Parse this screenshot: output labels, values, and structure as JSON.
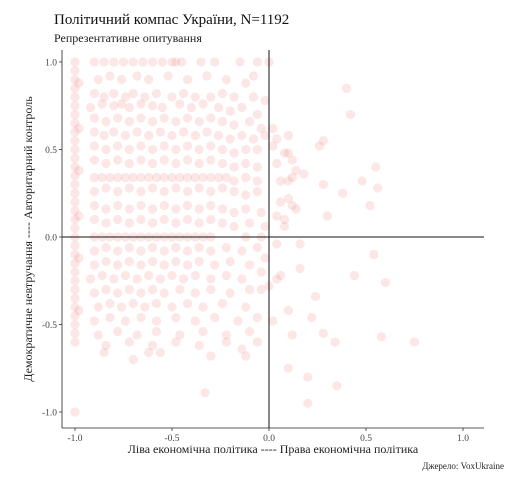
{
  "chart_data": {
    "type": "scatter",
    "title": "Політичний компас України, N=1192",
    "subtitle": "Репрезентативне опитування",
    "xlabel": "Ліва економічна політика ---- Права економічна політика",
    "ylabel": "Демократичне невтручання ---- Авторитарний контроль",
    "caption": "Джерело: VoxUkraine",
    "xlim": [
      -1.0,
      1.1
    ],
    "ylim": [
      -1.08,
      1.05
    ],
    "x_ticks": [
      -1.0,
      -0.5,
      0.0,
      0.5,
      1.0
    ],
    "x_tick_labels": [
      "-1.0",
      "-0.5",
      "0.0",
      "0.5",
      "1.0"
    ],
    "y_ticks": [
      -1.0,
      -0.5,
      0.0,
      0.5,
      1.0
    ],
    "y_tick_labels": [
      "-1.0",
      "-0.5",
      "0.0",
      "0.5",
      "1.0"
    ],
    "reference_lines": {
      "x": 0.0,
      "y": 0.0
    },
    "grid": false,
    "point_color": "#f08080",
    "point_opacity": 0.2,
    "points": [
      [
        -1.0,
        1.0
      ],
      [
        -1.0,
        0.95
      ],
      [
        -1.0,
        0.9
      ],
      [
        -1.0,
        0.85
      ],
      [
        -1.0,
        0.8
      ],
      [
        -1.0,
        0.75
      ],
      [
        -1.0,
        0.7
      ],
      [
        -1.0,
        0.65
      ],
      [
        -1.0,
        0.6
      ],
      [
        -1.0,
        0.55
      ],
      [
        -1.0,
        0.5
      ],
      [
        -1.0,
        0.45
      ],
      [
        -1.0,
        0.4
      ],
      [
        -1.0,
        0.35
      ],
      [
        -1.0,
        0.3
      ],
      [
        -1.0,
        0.25
      ],
      [
        -1.0,
        0.2
      ],
      [
        -1.0,
        0.15
      ],
      [
        -1.0,
        0.1
      ],
      [
        -1.0,
        0.05
      ],
      [
        -1.0,
        0.0
      ],
      [
        -1.0,
        -0.05
      ],
      [
        -1.0,
        -0.1
      ],
      [
        -1.0,
        -0.15
      ],
      [
        -1.0,
        -0.2
      ],
      [
        -1.0,
        -0.25
      ],
      [
        -1.0,
        -0.3
      ],
      [
        -1.0,
        -0.35
      ],
      [
        -1.0,
        -0.4
      ],
      [
        -1.0,
        -0.45
      ],
      [
        -1.0,
        -0.5
      ],
      [
        -1.0,
        -0.55
      ],
      [
        -1.0,
        -0.6
      ],
      [
        -1.0,
        -1.0
      ],
      [
        -0.98,
        0.88
      ],
      [
        -0.98,
        0.62
      ],
      [
        -0.98,
        0.38
      ],
      [
        -0.98,
        0.12
      ],
      [
        -0.98,
        -0.12
      ],
      [
        -0.98,
        -0.42
      ],
      [
        -0.9,
        1.0
      ],
      [
        -0.85,
        1.0
      ],
      [
        -0.8,
        1.0
      ],
      [
        -0.75,
        1.0
      ],
      [
        -0.7,
        1.0
      ],
      [
        -0.65,
        1.0
      ],
      [
        -0.6,
        1.0
      ],
      [
        -0.55,
        1.0
      ],
      [
        -0.5,
        1.0
      ],
      [
        -0.45,
        1.0
      ],
      [
        -0.48,
        1.0
      ],
      [
        -0.35,
        1.0
      ],
      [
        -0.28,
        1.0
      ],
      [
        -0.15,
        1.0
      ],
      [
        -0.88,
        0.9
      ],
      [
        -0.82,
        0.92
      ],
      [
        -0.76,
        0.9
      ],
      [
        -0.68,
        0.92
      ],
      [
        -0.62,
        0.9
      ],
      [
        -0.52,
        0.92
      ],
      [
        -0.42,
        0.9
      ],
      [
        -0.32,
        0.92
      ],
      [
        -0.22,
        0.9
      ],
      [
        -0.12,
        0.88
      ],
      [
        -0.9,
        0.82
      ],
      [
        -0.85,
        0.8
      ],
      [
        -0.8,
        0.82
      ],
      [
        -0.74,
        0.8
      ],
      [
        -0.7,
        0.82
      ],
      [
        -0.64,
        0.8
      ],
      [
        -0.58,
        0.82
      ],
      [
        -0.5,
        0.8
      ],
      [
        -0.44,
        0.82
      ],
      [
        -0.38,
        0.8
      ],
      [
        -0.3,
        0.8
      ],
      [
        -0.24,
        0.82
      ],
      [
        -0.18,
        0.8
      ],
      [
        -0.08,
        0.8
      ],
      [
        -0.92,
        0.74
      ],
      [
        -0.86,
        0.76
      ],
      [
        -0.8,
        0.75
      ],
      [
        -0.76,
        0.76
      ],
      [
        -0.72,
        0.74
      ],
      [
        -0.66,
        0.76
      ],
      [
        -0.6,
        0.75
      ],
      [
        -0.55,
        0.74
      ],
      [
        -0.46,
        0.76
      ],
      [
        -0.4,
        0.74
      ],
      [
        -0.34,
        0.76
      ],
      [
        -0.26,
        0.74
      ],
      [
        -0.2,
        0.72
      ],
      [
        -0.14,
        0.74
      ],
      [
        -0.06,
        0.7
      ],
      [
        -0.9,
        0.68
      ],
      [
        -0.84,
        0.66
      ],
      [
        -0.78,
        0.68
      ],
      [
        -0.72,
        0.66
      ],
      [
        -0.66,
        0.68
      ],
      [
        -0.6,
        0.66
      ],
      [
        -0.54,
        0.68
      ],
      [
        -0.48,
        0.66
      ],
      [
        -0.42,
        0.68
      ],
      [
        -0.36,
        0.66
      ],
      [
        -0.3,
        0.68
      ],
      [
        -0.24,
        0.66
      ],
      [
        -0.18,
        0.64
      ],
      [
        -0.1,
        0.66
      ],
      [
        -0.04,
        0.62
      ],
      [
        -0.9,
        0.6
      ],
      [
        -0.85,
        0.58
      ],
      [
        -0.8,
        0.6
      ],
      [
        -0.74,
        0.58
      ],
      [
        -0.68,
        0.6
      ],
      [
        -0.62,
        0.58
      ],
      [
        -0.56,
        0.6
      ],
      [
        -0.5,
        0.58
      ],
      [
        -0.44,
        0.6
      ],
      [
        -0.38,
        0.58
      ],
      [
        -0.32,
        0.6
      ],
      [
        -0.26,
        0.58
      ],
      [
        -0.2,
        0.56
      ],
      [
        -0.14,
        0.58
      ],
      [
        -0.08,
        0.56
      ],
      [
        -0.02,
        0.58
      ],
      [
        0.04,
        0.56
      ],
      [
        0.1,
        0.58
      ],
      [
        -0.9,
        0.52
      ],
      [
        -0.84,
        0.5
      ],
      [
        -0.78,
        0.52
      ],
      [
        -0.72,
        0.5
      ],
      [
        -0.66,
        0.52
      ],
      [
        -0.6,
        0.5
      ],
      [
        -0.54,
        0.52
      ],
      [
        -0.48,
        0.5
      ],
      [
        -0.42,
        0.52
      ],
      [
        -0.36,
        0.5
      ],
      [
        -0.3,
        0.52
      ],
      [
        -0.24,
        0.5
      ],
      [
        -0.18,
        0.48
      ],
      [
        -0.12,
        0.5
      ],
      [
        -0.06,
        0.5
      ],
      [
        0.02,
        0.52
      ],
      [
        0.08,
        0.48
      ],
      [
        -0.9,
        0.44
      ],
      [
        -0.84,
        0.42
      ],
      [
        -0.78,
        0.44
      ],
      [
        -0.72,
        0.42
      ],
      [
        -0.66,
        0.44
      ],
      [
        -0.6,
        0.42
      ],
      [
        -0.54,
        0.44
      ],
      [
        -0.48,
        0.42
      ],
      [
        -0.42,
        0.44
      ],
      [
        -0.36,
        0.42
      ],
      [
        -0.3,
        0.44
      ],
      [
        -0.24,
        0.42
      ],
      [
        -0.18,
        0.4
      ],
      [
        -0.12,
        0.42
      ],
      [
        -0.06,
        0.4
      ],
      [
        0.04,
        0.42
      ],
      [
        0.12,
        0.44
      ],
      [
        -0.9,
        0.34
      ],
      [
        -0.86,
        0.34
      ],
      [
        -0.82,
        0.34
      ],
      [
        -0.78,
        0.34
      ],
      [
        -0.74,
        0.34
      ],
      [
        -0.7,
        0.34
      ],
      [
        -0.66,
        0.34
      ],
      [
        -0.62,
        0.34
      ],
      [
        -0.58,
        0.34
      ],
      [
        -0.54,
        0.34
      ],
      [
        -0.5,
        0.34
      ],
      [
        -0.46,
        0.34
      ],
      [
        -0.42,
        0.34
      ],
      [
        -0.38,
        0.34
      ],
      [
        -0.34,
        0.34
      ],
      [
        -0.3,
        0.34
      ],
      [
        -0.26,
        0.34
      ],
      [
        -0.22,
        0.34
      ],
      [
        -0.18,
        0.32
      ],
      [
        -0.12,
        0.34
      ],
      [
        -0.06,
        0.32
      ],
      [
        0.06,
        0.32
      ],
      [
        0.12,
        0.34
      ],
      [
        -0.9,
        0.26
      ],
      [
        -0.84,
        0.28
      ],
      [
        -0.78,
        0.26
      ],
      [
        -0.72,
        0.28
      ],
      [
        -0.66,
        0.26
      ],
      [
        -0.6,
        0.28
      ],
      [
        -0.54,
        0.26
      ],
      [
        -0.48,
        0.28
      ],
      [
        -0.42,
        0.26
      ],
      [
        -0.36,
        0.28
      ],
      [
        -0.3,
        0.26
      ],
      [
        -0.24,
        0.28
      ],
      [
        -0.18,
        0.26
      ],
      [
        -0.12,
        0.24
      ],
      [
        -0.06,
        0.26
      ],
      [
        0.1,
        0.22
      ],
      [
        -0.9,
        0.18
      ],
      [
        -0.84,
        0.16
      ],
      [
        -0.78,
        0.18
      ],
      [
        -0.72,
        0.16
      ],
      [
        -0.66,
        0.18
      ],
      [
        -0.6,
        0.16
      ],
      [
        -0.54,
        0.18
      ],
      [
        -0.48,
        0.16
      ],
      [
        -0.42,
        0.18
      ],
      [
        -0.36,
        0.16
      ],
      [
        -0.3,
        0.18
      ],
      [
        -0.24,
        0.16
      ],
      [
        -0.18,
        0.14
      ],
      [
        -0.12,
        0.16
      ],
      [
        -0.04,
        0.14
      ],
      [
        0.04,
        0.12
      ],
      [
        0.14,
        0.16
      ],
      [
        -0.9,
        0.1
      ],
      [
        -0.84,
        0.08
      ],
      [
        -0.78,
        0.1
      ],
      [
        -0.72,
        0.08
      ],
      [
        -0.66,
        0.1
      ],
      [
        -0.6,
        0.08
      ],
      [
        -0.54,
        0.1
      ],
      [
        -0.48,
        0.08
      ],
      [
        -0.42,
        0.1
      ],
      [
        -0.36,
        0.08
      ],
      [
        -0.3,
        0.1
      ],
      [
        -0.24,
        0.08
      ],
      [
        -0.18,
        0.06
      ],
      [
        -0.1,
        0.08
      ],
      [
        -0.02,
        0.06
      ],
      [
        0.08,
        0.1
      ],
      [
        -0.9,
        0.0
      ],
      [
        -0.86,
        0.0
      ],
      [
        -0.82,
        0.0
      ],
      [
        -0.78,
        0.0
      ],
      [
        -0.74,
        0.0
      ],
      [
        -0.7,
        0.0
      ],
      [
        -0.66,
        0.0
      ],
      [
        -0.62,
        0.0
      ],
      [
        -0.58,
        0.0
      ],
      [
        -0.54,
        0.0
      ],
      [
        -0.5,
        0.0
      ],
      [
        -0.46,
        0.0
      ],
      [
        -0.42,
        0.0
      ],
      [
        -0.38,
        0.0
      ],
      [
        -0.34,
        0.0
      ],
      [
        -0.3,
        0.0
      ],
      [
        -0.12,
        0.0
      ],
      [
        -0.04,
        0.0
      ],
      [
        -0.9,
        -0.08
      ],
      [
        -0.84,
        -0.06
      ],
      [
        -0.78,
        -0.08
      ],
      [
        -0.72,
        -0.06
      ],
      [
        -0.66,
        -0.08
      ],
      [
        -0.6,
        -0.06
      ],
      [
        -0.54,
        -0.08
      ],
      [
        -0.48,
        -0.06
      ],
      [
        -0.42,
        -0.08
      ],
      [
        -0.36,
        -0.06
      ],
      [
        -0.3,
        -0.08
      ],
      [
        -0.22,
        -0.06
      ],
      [
        -0.14,
        -0.08
      ],
      [
        -0.06,
        -0.06
      ],
      [
        0.04,
        -0.04
      ],
      [
        -0.9,
        -0.16
      ],
      [
        -0.84,
        -0.14
      ],
      [
        -0.78,
        -0.16
      ],
      [
        -0.72,
        -0.14
      ],
      [
        -0.66,
        -0.16
      ],
      [
        -0.6,
        -0.14
      ],
      [
        -0.54,
        -0.16
      ],
      [
        -0.48,
        -0.14
      ],
      [
        -0.42,
        -0.16
      ],
      [
        -0.36,
        -0.14
      ],
      [
        -0.28,
        -0.16
      ],
      [
        -0.2,
        -0.14
      ],
      [
        -0.1,
        -0.16
      ],
      [
        -0.02,
        -0.12
      ],
      [
        -0.92,
        -0.24
      ],
      [
        -0.86,
        -0.22
      ],
      [
        -0.8,
        -0.24
      ],
      [
        -0.74,
        -0.22
      ],
      [
        -0.68,
        -0.24
      ],
      [
        -0.62,
        -0.22
      ],
      [
        -0.56,
        -0.24
      ],
      [
        -0.5,
        -0.22
      ],
      [
        -0.44,
        -0.24
      ],
      [
        -0.38,
        -0.22
      ],
      [
        -0.3,
        -0.24
      ],
      [
        -0.22,
        -0.22
      ],
      [
        -0.14,
        -0.24
      ],
      [
        -0.04,
        -0.2
      ],
      [
        0.04,
        -0.24
      ],
      [
        -0.9,
        -0.32
      ],
      [
        -0.84,
        -0.3
      ],
      [
        -0.78,
        -0.32
      ],
      [
        -0.72,
        -0.3
      ],
      [
        -0.66,
        -0.32
      ],
      [
        -0.6,
        -0.3
      ],
      [
        -0.54,
        -0.32
      ],
      [
        -0.46,
        -0.3
      ],
      [
        -0.38,
        -0.32
      ],
      [
        -0.3,
        -0.3
      ],
      [
        -0.2,
        -0.32
      ],
      [
        -0.1,
        -0.3
      ],
      [
        0.0,
        -0.28
      ],
      [
        -0.88,
        -0.4
      ],
      [
        -0.82,
        -0.38
      ],
      [
        -0.76,
        -0.4
      ],
      [
        -0.7,
        -0.38
      ],
      [
        -0.64,
        -0.4
      ],
      [
        -0.58,
        -0.38
      ],
      [
        -0.5,
        -0.4
      ],
      [
        -0.42,
        -0.38
      ],
      [
        -0.34,
        -0.4
      ],
      [
        -0.24,
        -0.38
      ],
      [
        -0.12,
        -0.4
      ],
      [
        -0.9,
        -0.48
      ],
      [
        -0.82,
        -0.46
      ],
      [
        -0.74,
        -0.48
      ],
      [
        -0.66,
        -0.46
      ],
      [
        -0.58,
        -0.48
      ],
      [
        -0.48,
        -0.46
      ],
      [
        -0.38,
        -0.48
      ],
      [
        -0.28,
        -0.46
      ],
      [
        -0.16,
        -0.48
      ],
      [
        -0.06,
        -0.46
      ],
      [
        -0.88,
        -0.56
      ],
      [
        -0.78,
        -0.54
      ],
      [
        -0.68,
        -0.56
      ],
      [
        -0.58,
        -0.54
      ],
      [
        -0.46,
        -0.56
      ],
      [
        -0.34,
        -0.54
      ],
      [
        -0.22,
        -0.56
      ],
      [
        -0.1,
        -0.54
      ],
      [
        -0.84,
        -0.62
      ],
      [
        -0.72,
        -0.6
      ],
      [
        -0.6,
        -0.62
      ],
      [
        -0.48,
        -0.6
      ],
      [
        -0.36,
        -0.62
      ],
      [
        -0.22,
        -0.6
      ],
      [
        -0.14,
        -0.64
      ],
      [
        -0.06,
        -0.6
      ],
      [
        -0.85,
        -0.66
      ],
      [
        -0.62,
        -0.66
      ],
      [
        -0.56,
        -0.66
      ],
      [
        -0.3,
        -0.68
      ],
      [
        -0.12,
        -0.68
      ],
      [
        -0.7,
        -0.7
      ],
      [
        -0.33,
        -0.89
      ],
      [
        -0.06,
        1.0
      ],
      [
        0.0,
        1.0
      ],
      [
        -0.02,
        0.78
      ],
      [
        -0.08,
        0.92
      ],
      [
        0.02,
        0.62
      ],
      [
        0.1,
        0.48
      ],
      [
        0.14,
        0.38
      ],
      [
        0.1,
        0.32
      ],
      [
        0.18,
        0.36
      ],
      [
        0.06,
        0.2
      ],
      [
        0.12,
        0.18
      ],
      [
        0.08,
        0.06
      ],
      [
        0.16,
        -0.04
      ],
      [
        0.16,
        -0.18
      ],
      [
        0.06,
        -0.22
      ],
      [
        -0.04,
        -0.3
      ],
      [
        0.22,
        -0.46
      ],
      [
        0.1,
        -0.42
      ],
      [
        0.02,
        -0.48
      ],
      [
        0.12,
        -0.56
      ],
      [
        0.28,
        -0.55
      ],
      [
        0.1,
        -0.75
      ],
      [
        0.2,
        -0.8
      ],
      [
        0.2,
        -0.95
      ],
      [
        0.35,
        -0.85
      ],
      [
        0.26,
        0.52
      ],
      [
        0.28,
        0.3
      ],
      [
        0.3,
        0.12
      ],
      [
        0.38,
        0.25
      ],
      [
        0.42,
        0.7
      ],
      [
        0.28,
        0.55
      ],
      [
        0.24,
        -0.34
      ],
      [
        0.34,
        -0.6
      ],
      [
        0.55,
        0.4
      ],
      [
        0.56,
        0.28
      ],
      [
        0.52,
        0.18
      ],
      [
        0.48,
        0.32
      ],
      [
        0.54,
        -0.1
      ],
      [
        0.44,
        -0.22
      ],
      [
        0.6,
        -0.26
      ],
      [
        0.75,
        -0.6
      ],
      [
        0.58,
        -0.57
      ],
      [
        0.4,
        0.85
      ]
    ]
  }
}
